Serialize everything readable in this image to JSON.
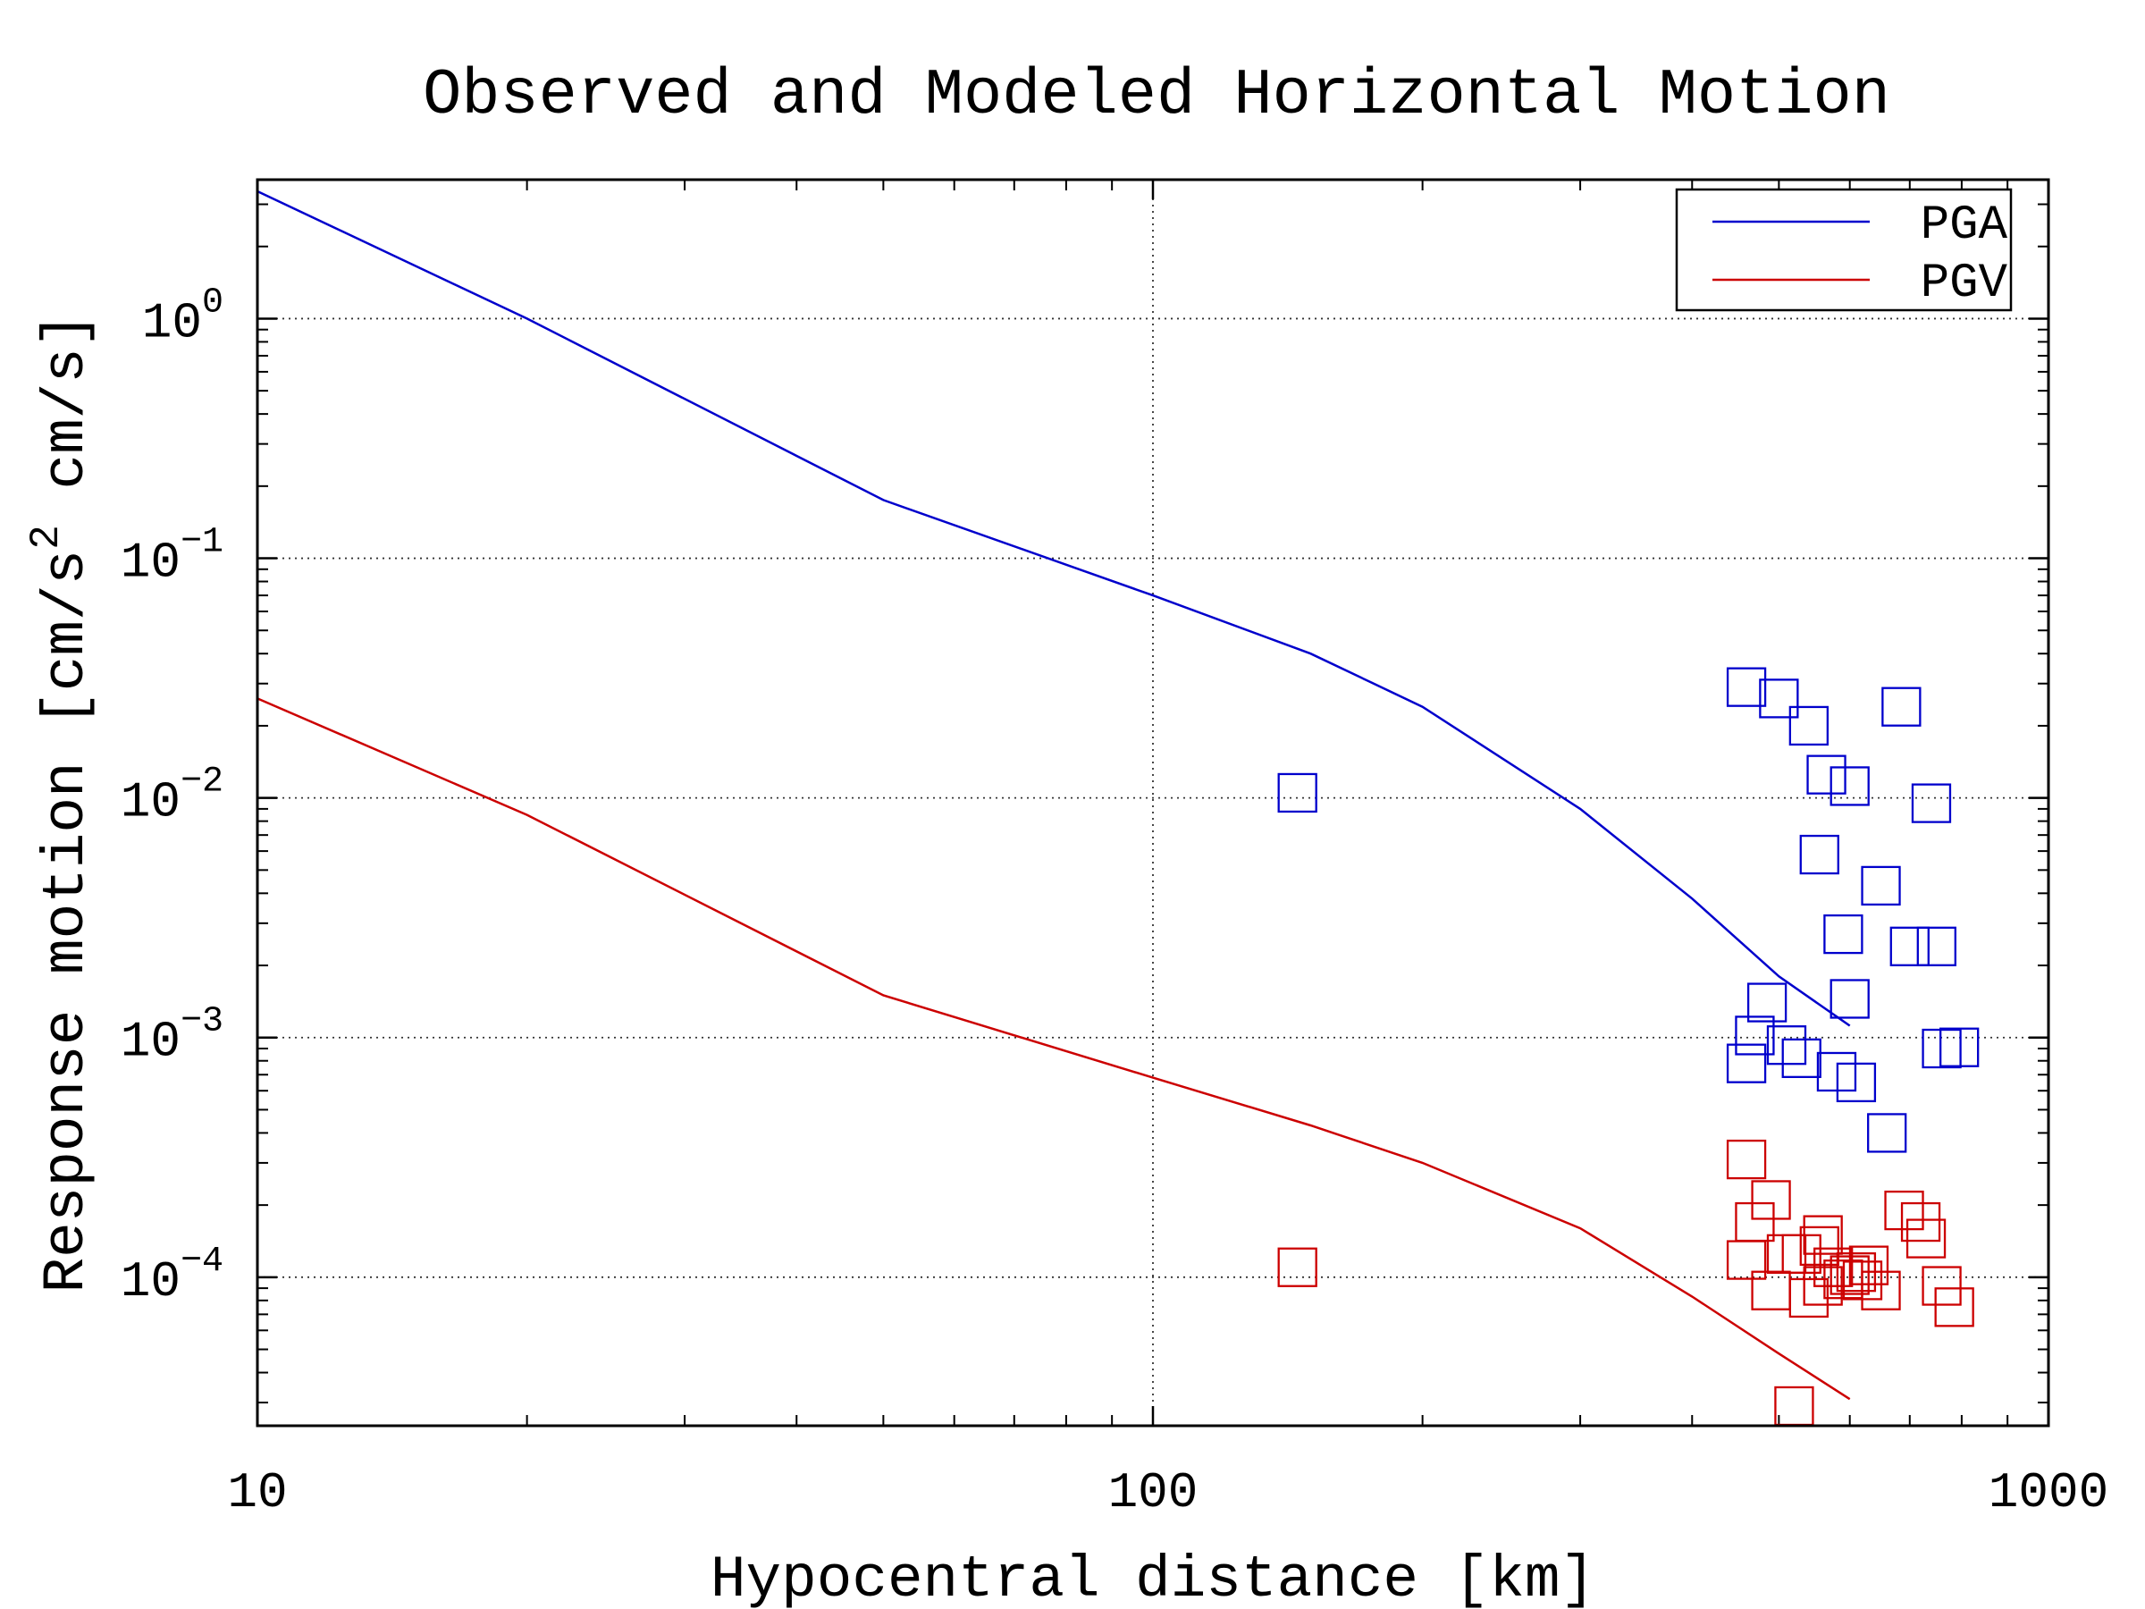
{
  "chart_data": {
    "type": "line",
    "title": "Observed and Modeled Horizontal Motion",
    "xlabel": "Hypocentral distance [km]",
    "ylabel_parts": [
      "Response motion [cm/s",
      "2",
      " cm/s]"
    ],
    "x_scale": "log",
    "y_scale": "log",
    "xlim": [
      10,
      1000
    ],
    "ylim": [
      2.4e-05,
      3.8
    ],
    "x_ticks": [
      {
        "value": 10,
        "label": "10"
      },
      {
        "value": 100,
        "label": "100"
      },
      {
        "value": 1000,
        "label": "1000"
      }
    ],
    "y_ticks": [
      {
        "value": 1,
        "base": "10",
        "exp": "0"
      },
      {
        "value": 0.1,
        "base": "10",
        "exp": "−1"
      },
      {
        "value": 0.01,
        "base": "10",
        "exp": "−2"
      },
      {
        "value": 0.001,
        "base": "10",
        "exp": "−3"
      },
      {
        "value": 0.0001,
        "base": "10",
        "exp": "−4"
      }
    ],
    "grid": true,
    "legend_position": "top-right",
    "series": [
      {
        "name": "PGA",
        "color": "#0000cc",
        "x": [
          10,
          20,
          50,
          100,
          150,
          200,
          300,
          400,
          500,
          600
        ],
        "y": [
          3.4,
          1.0,
          0.175,
          0.07,
          0.04,
          0.024,
          0.009,
          0.0038,
          0.0018,
          0.00112
        ]
      },
      {
        "name": "PGV",
        "color": "#cc0000",
        "x": [
          10,
          20,
          50,
          100,
          150,
          200,
          300,
          400,
          500,
          600
        ],
        "y": [
          0.026,
          0.0085,
          0.0015,
          0.00068,
          0.00043,
          0.0003,
          0.00016,
          8.3e-05,
          4.8e-05,
          3.1e-05
        ]
      }
    ],
    "observed": [
      {
        "name": "PGA",
        "color": "#0000cc",
        "x": [
          145,
          460,
          500,
          540,
          565,
          600,
          685,
          740,
          470,
          555,
          650,
          590,
          600,
          700,
          760,
          485,
          510,
          530,
          460,
          580,
          610,
          660,
          795,
          750
        ],
        "y": [
          0.0105,
          0.029,
          0.026,
          0.02,
          0.0125,
          0.0112,
          0.024,
          0.0095,
          0.00102,
          0.0058,
          0.0043,
          0.0027,
          0.00145,
          0.0024,
          0.0009,
          0.0014,
          0.00093,
          0.00082,
          0.00078,
          0.00072,
          0.00065,
          0.0004,
          0.00091,
          0.0024
        ]
      },
      {
        "name": "PGV",
        "color": "#cc0000",
        "x": [
          145,
          460,
          470,
          490,
          530,
          555,
          560,
          575,
          590,
          610,
          630,
          690,
          720,
          730,
          760,
          785,
          460,
          490,
          510,
          540,
          560,
          600,
          620,
          650,
          520
        ],
        "y": [
          0.00011,
          0.00031,
          0.00017,
          0.00021,
          0.000125,
          0.000135,
          0.00015,
          0.00011,
          9.8e-05,
          0.000105,
          0.000112,
          0.00019,
          0.00017,
          0.000145,
          9.2e-05,
          7.5e-05,
          0.000118,
          8.8e-05,
          0.000125,
          8.2e-05,
          9.2e-05,
          0.000102,
          9.7e-05,
          8.8e-05,
          2.9e-05
        ]
      }
    ]
  }
}
